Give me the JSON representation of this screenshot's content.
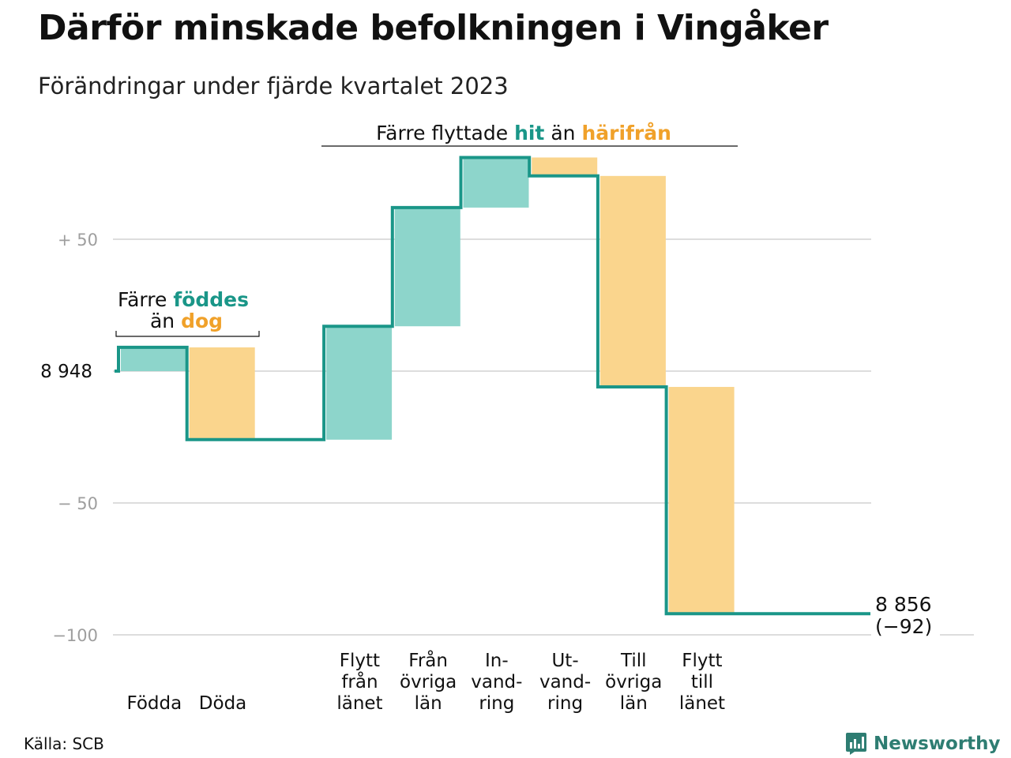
{
  "title": "Därför minskade befolkningen i Vingåker",
  "subtitle": "Förändringar under fjärde kvartalet 2023",
  "source": "Källa: SCB",
  "brand": {
    "name": "Newsworthy",
    "icon": "newsworthy-chart-icon"
  },
  "colors": {
    "teal_line": "#1a9688",
    "teal_fill": "#8dd5cb",
    "orange_fill": "#fad58d",
    "orange_text": "#f0a12a",
    "teal_text": "#1a9688",
    "grid": "#dddddd"
  },
  "chart_data": {
    "type": "waterfall",
    "start_value": 8948,
    "end_value": 8856,
    "net_change": -92,
    "start_label": "8 948",
    "end_label": "8 856",
    "end_change_label": "(−92)",
    "ylim": [
      -100,
      82
    ],
    "y_ticks": [
      {
        "value": 50,
        "label": "+  50"
      },
      {
        "value": 0,
        "label": "8  948"
      },
      {
        "value": -50,
        "label": "−  50"
      },
      {
        "value": -100,
        "label": "−100"
      }
    ],
    "categories": [
      {
        "key": "fodda",
        "label": [
          "Födda"
        ],
        "value": 9,
        "kind": "in"
      },
      {
        "key": "doda",
        "label": [
          "Döda"
        ],
        "value": -35,
        "kind": "out"
      },
      {
        "key": "gap",
        "label": [],
        "value": 0,
        "kind": "none"
      },
      {
        "key": "flytt_fran_lanet",
        "label": [
          "Flytt",
          "från",
          "länet"
        ],
        "value": 43,
        "kind": "in"
      },
      {
        "key": "fran_ovriga_lan",
        "label": [
          "Från",
          "övriga",
          "län"
        ],
        "value": 45,
        "kind": "in"
      },
      {
        "key": "invandring",
        "label": [
          "In-",
          "vand-",
          "ring"
        ],
        "value": 19,
        "kind": "in"
      },
      {
        "key": "utvandring",
        "label": [
          "Ut-",
          "vand-",
          "ring"
        ],
        "value": -7,
        "kind": "out"
      },
      {
        "key": "till_ovriga_lan",
        "label": [
          "Till",
          "övriga",
          "län"
        ],
        "value": -80,
        "kind": "out"
      },
      {
        "key": "flytt_till_lanet",
        "label": [
          "Flytt",
          "till",
          "länet"
        ],
        "value": -86,
        "kind": "out"
      }
    ],
    "annotations": {
      "births": {
        "line1_prefix": "Färre ",
        "line1_teal": "föddes",
        "line2_prefix": "än ",
        "line2_orange": "dog"
      },
      "moves": {
        "prefix": "Färre flyttade ",
        "teal": "hit",
        "middle": " än ",
        "orange": "härifrån"
      }
    }
  }
}
